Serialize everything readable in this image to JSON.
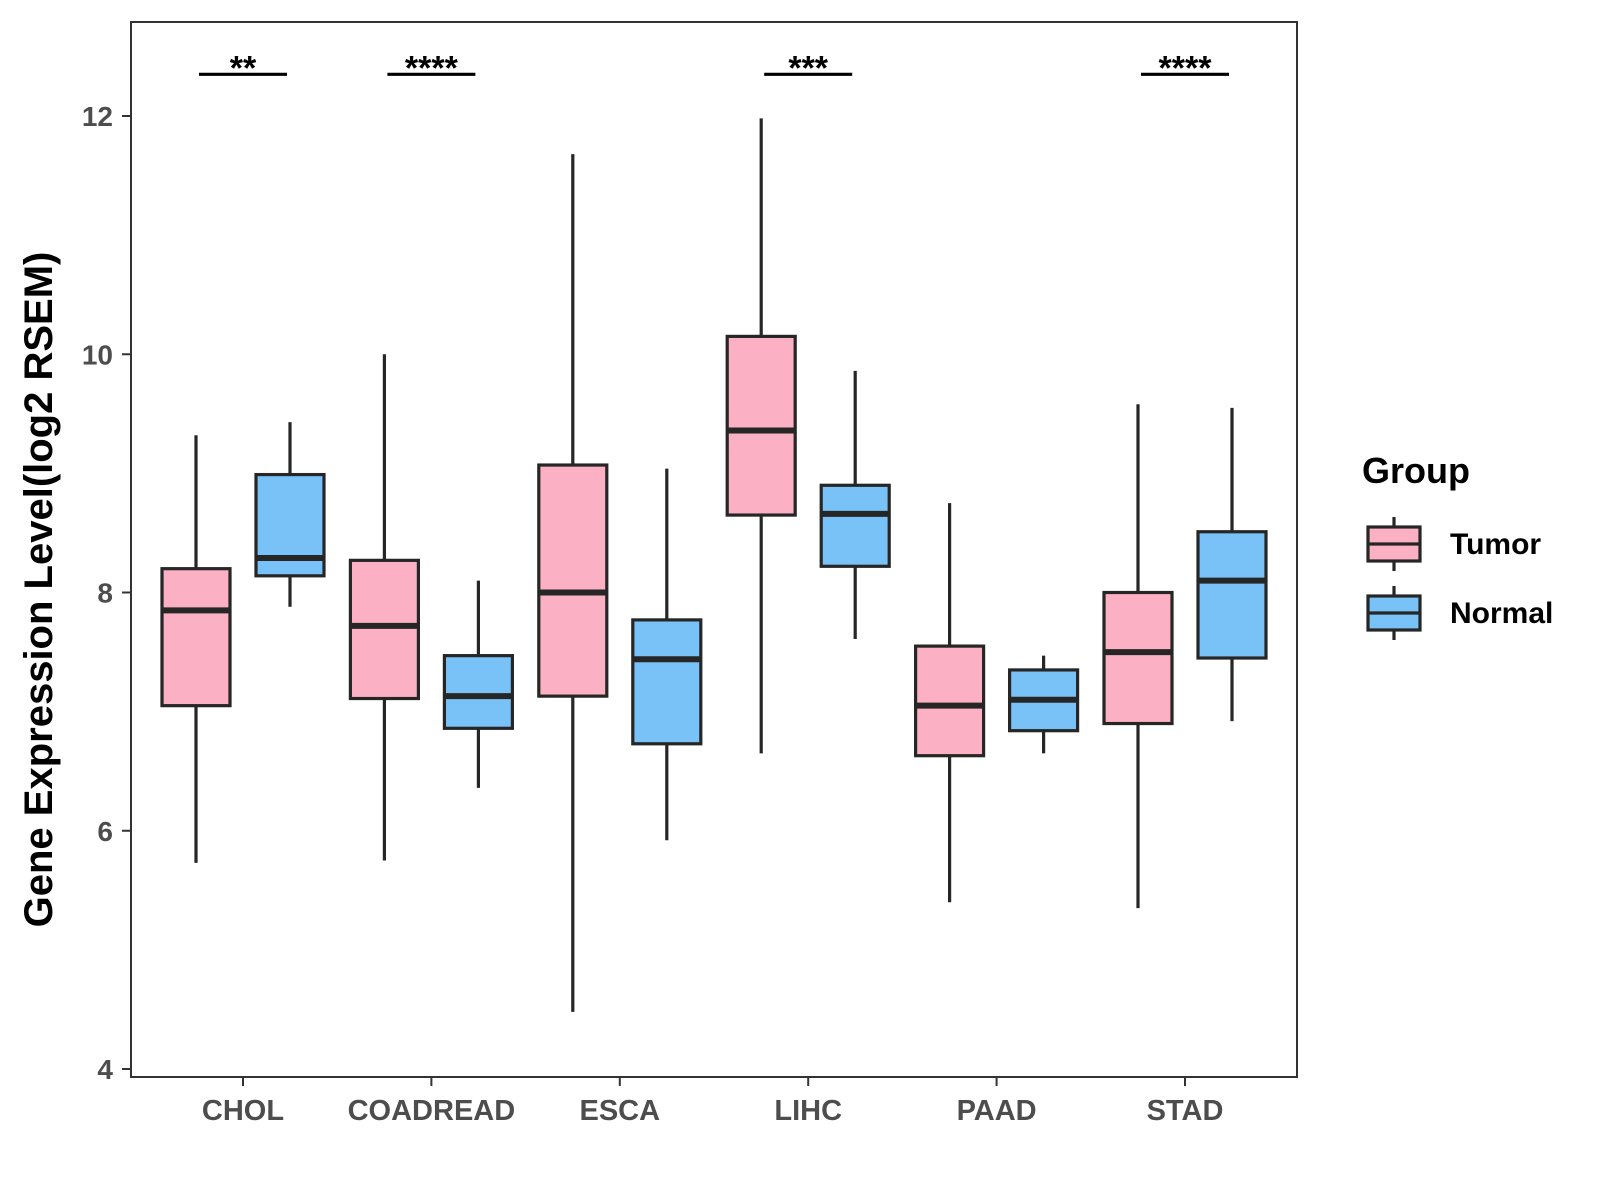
{
  "chart_data": {
    "type": "box",
    "title": "",
    "xlabel": "",
    "ylabel": "Gene Expression Level(log2 RSEM)",
    "ylim": [
      3.8,
      12.8
    ],
    "yticks": [
      4,
      6,
      8,
      10,
      12
    ],
    "ytick_labels": [
      "4",
      "6",
      "8",
      "10",
      "12"
    ],
    "categories": [
      "CHOL",
      "COADREAD",
      "ESCA",
      "LIHC",
      "PAAD",
      "STAD"
    ],
    "legend": {
      "title": "Group",
      "position": "right",
      "entries": [
        "Tumor",
        "Normal"
      ]
    },
    "series": [
      {
        "name": "Tumor",
        "color": "#fbb0c3",
        "boxes": [
          {
            "category": "CHOL",
            "whisker_low": 5.73,
            "q1": 7.05,
            "median": 7.85,
            "q3": 8.2,
            "whisker_high": 9.32
          },
          {
            "category": "COADREAD",
            "whisker_low": 5.75,
            "q1": 7.11,
            "median": 7.72,
            "q3": 8.27,
            "whisker_high": 10.0
          },
          {
            "category": "ESCA",
            "whisker_low": 4.48,
            "q1": 7.13,
            "median": 8.0,
            "q3": 9.07,
            "whisker_high": 11.68
          },
          {
            "category": "LIHC",
            "whisker_low": 6.65,
            "q1": 8.65,
            "median": 9.36,
            "q3": 10.15,
            "whisker_high": 11.98
          },
          {
            "category": "PAAD",
            "whisker_low": 5.4,
            "q1": 6.63,
            "median": 7.05,
            "q3": 7.55,
            "whisker_high": 8.75
          },
          {
            "category": "STAD",
            "whisker_low": 5.35,
            "q1": 6.9,
            "median": 7.5,
            "q3": 8.0,
            "whisker_high": 9.58
          }
        ]
      },
      {
        "name": "Normal",
        "color": "#79c2f7",
        "boxes": [
          {
            "category": "CHOL",
            "whisker_low": 7.88,
            "q1": 8.14,
            "median": 8.29,
            "q3": 8.99,
            "whisker_high": 9.43
          },
          {
            "category": "COADREAD",
            "whisker_low": 6.36,
            "q1": 6.86,
            "median": 7.13,
            "q3": 7.47,
            "whisker_high": 8.1
          },
          {
            "category": "ESCA",
            "whisker_low": 5.92,
            "q1": 6.73,
            "median": 7.44,
            "q3": 7.77,
            "whisker_high": 9.04
          },
          {
            "category": "LIHC",
            "whisker_low": 7.61,
            "q1": 8.22,
            "median": 8.66,
            "q3": 8.9,
            "whisker_high": 9.86
          },
          {
            "category": "PAAD",
            "whisker_low": 6.65,
            "q1": 6.84,
            "median": 7.1,
            "q3": 7.35,
            "whisker_high": 7.47
          },
          {
            "category": "STAD",
            "whisker_low": 6.92,
            "q1": 7.45,
            "median": 8.1,
            "q3": 8.51,
            "whisker_high": 9.55
          }
        ]
      }
    ],
    "significance": [
      {
        "category": "CHOL",
        "label": "**",
        "y": 12.35
      },
      {
        "category": "COADREAD",
        "label": "****",
        "y": 12.35
      },
      {
        "category": "LIHC",
        "label": "***",
        "y": 12.35
      },
      {
        "category": "STAD",
        "label": "****",
        "y": 12.35
      }
    ]
  }
}
